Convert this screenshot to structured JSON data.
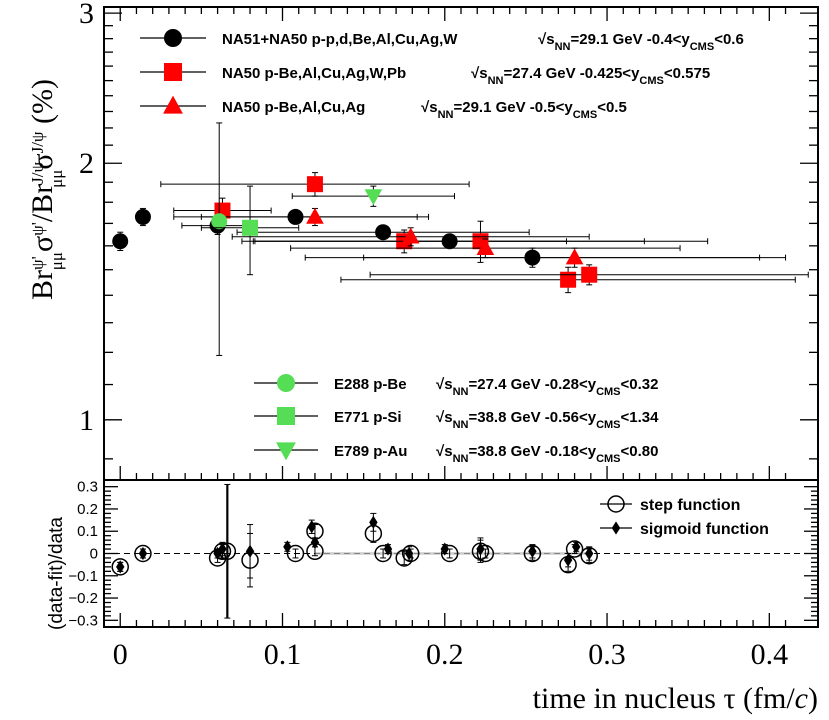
{
  "chart_data": [
    {
      "type": "scatter",
      "ylabel": "Br_{μμ}^{ψ'} σ^{ψ'} / Br_{μμ}^{J/ψ} σ^{J/ψ} (%)",
      "ylabel_parts": {
        "a": "Br",
        "a_sub": "μμ",
        "a_sup": "ψ'",
        "b": "σ",
        "b_sup": "ψ'",
        "c": "/Br",
        "c_sub": "μμ",
        "c_sup": "J/ψ",
        "d": "σ",
        "d_sup": "J/ψ",
        "unit": "(%)"
      },
      "xlim": [
        -0.01,
        0.43
      ],
      "ylim": [
        0.85,
        3.05
      ],
      "yscale": "log",
      "yticks_labeled": [
        "1",
        "2",
        "3"
      ],
      "series": [
        {
          "name": "NA51+NA50 p-p,d,Be,Al,Cu,Ag,W",
          "kin": "√s_NN=29.1 GeV  -0.4<y_CMS<0.6",
          "marker": "circle",
          "color": "#000000",
          "points": [
            {
              "x": 0.0,
              "y": 1.62,
              "xerr": 0.0,
              "yerr": 0.04
            },
            {
              "x": 0.014,
              "y": 1.73,
              "xerr": 0.002,
              "yerr": 0.04
            },
            {
              "x": 0.06,
              "y": 1.69,
              "xerr": 0.022,
              "yerr": 0.04
            },
            {
              "x": 0.108,
              "y": 1.73,
              "xerr": 0.075,
              "yerr": 0.03
            },
            {
              "x": 0.162,
              "y": 1.66,
              "xerr": 0.09,
              "yerr": 0.03
            },
            {
              "x": 0.203,
              "y": 1.62,
              "xerr": 0.12,
              "yerr": 0.03
            },
            {
              "x": 0.254,
              "y": 1.55,
              "xerr": 0.14,
              "yerr": 0.04
            }
          ]
        },
        {
          "name": "NA50 p-Be,Al,Cu,Ag,W,Pb",
          "kin": "√s_NN=27.4 GeV  -0.425<y_CMS<0.575",
          "marker": "square",
          "color": "#ff0000",
          "points": [
            {
              "x": 0.063,
              "y": 1.76,
              "xerr": 0.03,
              "yerr": 0.06
            },
            {
              "x": 0.12,
              "y": 1.89,
              "xerr": 0.095,
              "yerr": 0.06
            },
            {
              "x": 0.175,
              "y": 1.62,
              "xerr": 0.1,
              "yerr": 0.05
            },
            {
              "x": 0.222,
              "y": 1.62,
              "xerr": 0.14,
              "yerr": 0.09
            },
            {
              "x": 0.276,
              "y": 1.46,
              "xerr": 0.14,
              "yerr": 0.05
            },
            {
              "x": 0.289,
              "y": 1.48,
              "xerr": 0.135,
              "yerr": 0.04
            }
          ]
        },
        {
          "name": "NA50 p-Be,Al,Cu,Ag",
          "kin": "√s_NN=29.1 GeV  -0.5<y_CMS<0.5",
          "marker": "triangle-up",
          "color": "#ff0000",
          "points": [
            {
              "x": 0.12,
              "y": 1.73,
              "xerr": 0.07,
              "yerr": 0.04
            },
            {
              "x": 0.179,
              "y": 1.64,
              "xerr": 0.11,
              "yerr": 0.04
            },
            {
              "x": 0.225,
              "y": 1.59,
              "xerr": 0.12,
              "yerr": 0.04
            },
            {
              "x": 0.28,
              "y": 1.55,
              "xerr": 0.13,
              "yerr": 0.04
            }
          ]
        },
        {
          "name": "E288 p-Be",
          "kin": "√s_NN=27.4 GeV  -0.28<y_CMS<0.32",
          "marker": "circle",
          "color": "#55dd55",
          "points": [
            {
              "x": 0.061,
              "y": 1.71,
              "xerr": 0.0,
              "yerr": 0.52
            }
          ]
        },
        {
          "name": "E771 p-Si",
          "kin": "√s_NN=38.8 GeV  -0.56<y_CMS<1.34",
          "marker": "square",
          "color": "#55dd55",
          "points": [
            {
              "x": 0.08,
              "y": 1.68,
              "xerr": 0.03,
              "yerr": 0.2
            }
          ]
        },
        {
          "name": "E789 p-Au",
          "kin": "√s_NN=38.8 GeV  -0.18<y_CMS<0.80",
          "marker": "triangle-down",
          "color": "#55dd55",
          "points": [
            {
              "x": 0.156,
              "y": 1.83,
              "xerr": 0.05,
              "yerr": 0.05
            }
          ]
        }
      ]
    },
    {
      "type": "scatter",
      "xlabel": "time in nucleus τ (fm/c)",
      "xlabel_parts": {
        "main": "time in nucleus ",
        "tau": "τ",
        "open": " (fm/",
        "c": "c",
        ")": ")"
      },
      "ylabel": "(data-fit)/data",
      "xlim": [
        -0.01,
        0.43
      ],
      "ylim": [
        -0.33,
        0.33
      ],
      "xticks": [
        {
          "v": 0.0,
          "label": "0"
        },
        {
          "v": 0.1,
          "label": "0.1"
        },
        {
          "v": 0.2,
          "label": "0.2"
        },
        {
          "v": 0.3,
          "label": "0.3"
        },
        {
          "v": 0.4,
          "label": "0.4"
        }
      ],
      "yticks": [
        {
          "v": 0.3,
          "label": "0.3"
        },
        {
          "v": 0.2,
          "label": "0.2"
        },
        {
          "v": 0.1,
          "label": "0.1"
        },
        {
          "v": 0,
          "label": "0"
        },
        {
          "v": -0.1,
          "label": "−0.1"
        },
        {
          "v": -0.2,
          "label": "−0.2"
        },
        {
          "v": -0.3,
          "label": "−0.3"
        }
      ],
      "series": [
        {
          "name": "step function",
          "marker": "open-circle",
          "color": "#000000",
          "points": [
            {
              "x": 0.0,
              "y": -0.06,
              "yerr": 0.02
            },
            {
              "x": 0.014,
              "y": 0.0,
              "yerr": 0.02
            },
            {
              "x": 0.06,
              "y": -0.02,
              "yerr": 0.02
            },
            {
              "x": 0.063,
              "y": 0.01,
              "yerr": 0.03
            },
            {
              "x": 0.066,
              "y": 0.01,
              "yerr": 0.3
            },
            {
              "x": 0.08,
              "y": -0.03,
              "yerr": 0.12
            },
            {
              "x": 0.108,
              "y": 0.0,
              "yerr": 0.02
            },
            {
              "x": 0.12,
              "y": 0.1,
              "yerr": 0.03
            },
            {
              "x": 0.12,
              "y": 0.01,
              "yerr": 0.02
            },
            {
              "x": 0.156,
              "y": 0.09,
              "yerr": 0.04
            },
            {
              "x": 0.162,
              "y": 0.0,
              "yerr": 0.02
            },
            {
              "x": 0.175,
              "y": -0.02,
              "yerr": 0.03
            },
            {
              "x": 0.179,
              "y": 0.0,
              "yerr": 0.02
            },
            {
              "x": 0.203,
              "y": 0.0,
              "yerr": 0.02
            },
            {
              "x": 0.222,
              "y": 0.01,
              "yerr": 0.05
            },
            {
              "x": 0.225,
              "y": 0.0,
              "yerr": 0.02
            },
            {
              "x": 0.254,
              "y": 0.0,
              "yerr": 0.03
            },
            {
              "x": 0.276,
              "y": -0.05,
              "yerr": 0.03
            },
            {
              "x": 0.28,
              "y": 0.02,
              "yerr": 0.02
            },
            {
              "x": 0.289,
              "y": -0.01,
              "yerr": 0.03
            }
          ]
        },
        {
          "name": "sigmoid function",
          "marker": "diamond",
          "color": "#000000",
          "points": [
            {
              "x": 0.0,
              "y": -0.06,
              "yerr": 0.02
            },
            {
              "x": 0.014,
              "y": 0.0,
              "yerr": 0.02
            },
            {
              "x": 0.06,
              "y": 0.0,
              "yerr": 0.02
            },
            {
              "x": 0.063,
              "y": 0.02,
              "yerr": 0.03
            },
            {
              "x": 0.08,
              "y": 0.01,
              "yerr": 0.12
            },
            {
              "x": 0.103,
              "y": 0.03,
              "yerr": 0.02
            },
            {
              "x": 0.118,
              "y": 0.12,
              "yerr": 0.03
            },
            {
              "x": 0.12,
              "y": 0.05,
              "yerr": 0.02
            },
            {
              "x": 0.156,
              "y": 0.14,
              "yerr": 0.04
            },
            {
              "x": 0.165,
              "y": 0.02,
              "yerr": 0.02
            },
            {
              "x": 0.178,
              "y": 0.0,
              "yerr": 0.03
            },
            {
              "x": 0.2,
              "y": 0.02,
              "yerr": 0.02
            },
            {
              "x": 0.222,
              "y": 0.02,
              "yerr": 0.05
            },
            {
              "x": 0.254,
              "y": 0.01,
              "yerr": 0.03
            },
            {
              "x": 0.276,
              "y": -0.03,
              "yerr": 0.03
            },
            {
              "x": 0.281,
              "y": 0.03,
              "yerr": 0.02
            },
            {
              "x": 0.289,
              "y": 0.0,
              "yerr": 0.03
            }
          ]
        }
      ]
    }
  ]
}
